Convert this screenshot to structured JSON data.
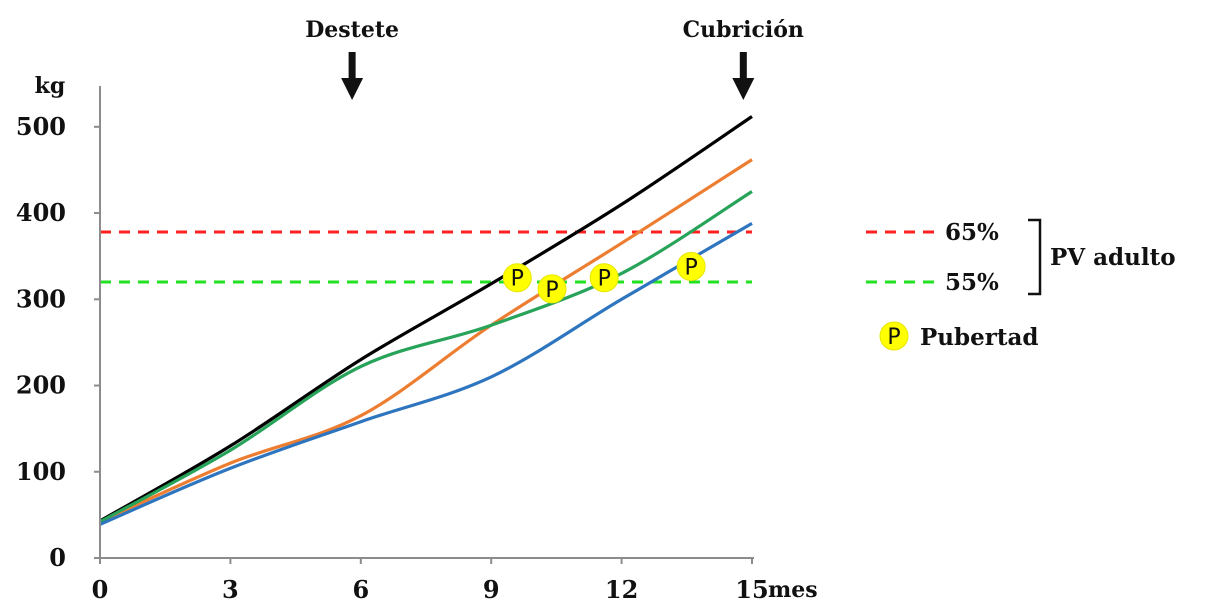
{
  "chart_data": {
    "type": "line",
    "ylabel": "kg",
    "xlabel": "mes",
    "xlim": [
      0,
      15
    ],
    "ylim": [
      0,
      550
    ],
    "x_ticks": [
      0,
      3,
      6,
      9,
      12,
      15
    ],
    "y_ticks": [
      0,
      100,
      200,
      300,
      400,
      500
    ],
    "grid": false,
    "events": [
      {
        "label": "Destete",
        "x": 5.8
      },
      {
        "label": "Cubrición",
        "x": 14.8
      }
    ],
    "series": [
      {
        "color": "#000000",
        "x": [
          0,
          3,
          6,
          9,
          12,
          15
        ],
        "y": [
          43,
          130,
          230,
          318,
          410,
          512
        ]
      },
      {
        "color": "#ED7D31",
        "x": [
          0,
          3,
          6,
          9,
          12,
          15
        ],
        "y": [
          42,
          110,
          165,
          270,
          365,
          462
        ]
      },
      {
        "color": "#27A35A",
        "x": [
          0,
          3,
          6,
          9,
          12,
          15
        ],
        "y": [
          42,
          125,
          222,
          270,
          330,
          425
        ]
      },
      {
        "color": "#2E75C0",
        "x": [
          0,
          3,
          6,
          9,
          12,
          15
        ],
        "y": [
          39,
          104,
          158,
          210,
          300,
          388
        ]
      }
    ],
    "reference_lines": [
      {
        "label": "65%",
        "y": 378,
        "color": "#FF2020",
        "style": "dashed"
      },
      {
        "label": "55%",
        "y": 320,
        "color": "#22E022",
        "style": "dashed"
      }
    ],
    "bracket_label": "PV adulto",
    "pubertad_markers": [
      {
        "x": 9.6,
        "y": 325
      },
      {
        "x": 10.4,
        "y": 312
      },
      {
        "x": 11.6,
        "y": 325
      },
      {
        "x": 13.6,
        "y": 338
      }
    ],
    "marker_symbol": "P",
    "marker_color": "#FFFF00",
    "legend_label": "Pubertad"
  }
}
